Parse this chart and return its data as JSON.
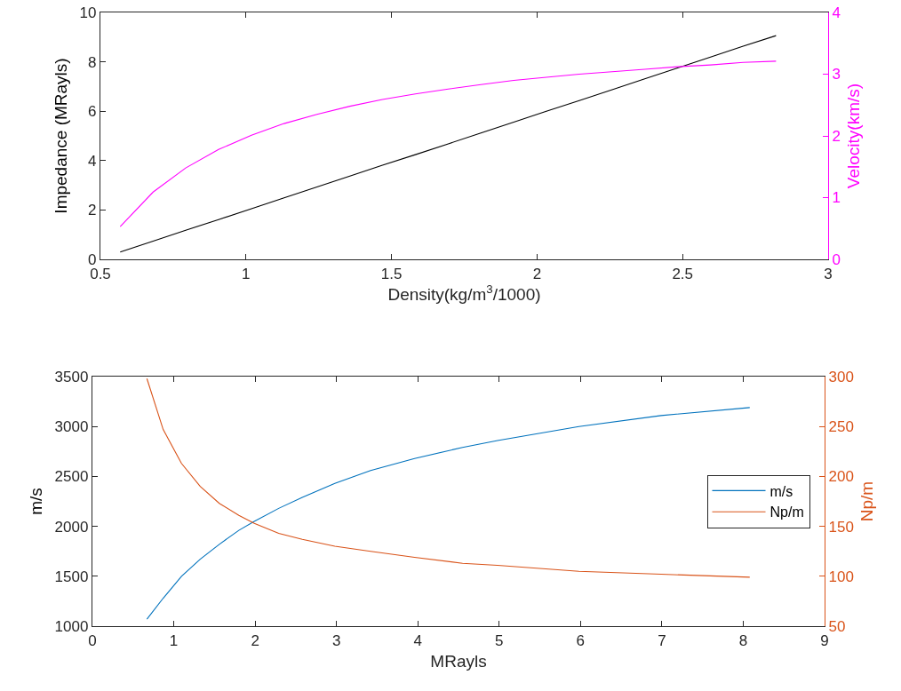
{
  "chart_data": [
    {
      "type": "line",
      "xlabel": "Density(kg/m$^{3}$/1000)",
      "ylabel": "Impedance (MRayls)",
      "y2label": "Velocity(km/s)",
      "xlim": [
        0.5,
        3
      ],
      "xticks": [
        0.5,
        1,
        1.5,
        2,
        2.5,
        3
      ],
      "ylim": [
        0,
        10
      ],
      "yticks": [
        0,
        2,
        4,
        6,
        8,
        10
      ],
      "y2lim": [
        0,
        4
      ],
      "y2ticks": [
        0,
        1,
        2,
        3,
        4
      ],
      "marker": "none",
      "line_style": "solid",
      "x": [
        0.568,
        0.681,
        0.793,
        0.906,
        1.019,
        1.131,
        1.244,
        1.357,
        1.469,
        1.582,
        1.695,
        1.807,
        1.92,
        2.032,
        2.145,
        2.258,
        2.37,
        2.483,
        2.596,
        2.708,
        2.821
      ],
      "series": [
        {
          "color": "#000000",
          "values": [
            0.3,
            0.74,
            1.18,
            1.61,
            2.05,
            2.49,
            2.93,
            3.37,
            3.81,
            4.24,
            4.68,
            5.12,
            5.56,
            6.0,
            6.43,
            6.87,
            7.31,
            7.75,
            8.19,
            8.63,
            9.06
          ]
        },
        {
          "color": "#ff00ff",
          "axis": "y2",
          "values": [
            0.53,
            1.09,
            1.48,
            1.78,
            2.01,
            2.2,
            2.35,
            2.48,
            2.59,
            2.68,
            2.76,
            2.83,
            2.9,
            2.95,
            3.0,
            3.04,
            3.08,
            3.12,
            3.15,
            3.19,
            3.21
          ]
        }
      ]
    },
    {
      "type": "line",
      "xlabel": "MRayls",
      "ylabel": "m/s",
      "y2label": "Np/m",
      "xlim": [
        0,
        9
      ],
      "xticks": [
        0,
        1,
        2,
        3,
        4,
        5,
        6,
        7,
        8,
        9
      ],
      "ylim": [
        1000,
        3500
      ],
      "yticks": [
        1000,
        1500,
        2000,
        2500,
        3000,
        3500
      ],
      "y2lim": [
        50,
        300
      ],
      "y2ticks": [
        50,
        100,
        150,
        200,
        250,
        300
      ],
      "marker": "none",
      "line_style": "solid",
      "legend": "right",
      "x": [
        0.67,
        0.87,
        1.095,
        1.325,
        1.56,
        1.8,
        1.99,
        2.29,
        2.58,
        2.98,
        3.42,
        3.96,
        4.55,
        4.98,
        5.98,
        6.99,
        8.08
      ],
      "series": [
        {
          "name": "m/s",
          "color": "#0072bd",
          "values": [
            1070,
            1280,
            1500,
            1670,
            1820,
            1960,
            2050,
            2180,
            2290,
            2430,
            2560,
            2680,
            2790,
            2860,
            3000,
            3110,
            3190
          ]
        },
        {
          "name": "Np/m",
          "color": "#d95319",
          "axis": "y2",
          "values": [
            298,
            247,
            213,
            190,
            173,
            161,
            153,
            143,
            137,
            130,
            125,
            119,
            113,
            111,
            105,
            102,
            99
          ]
        }
      ]
    }
  ]
}
